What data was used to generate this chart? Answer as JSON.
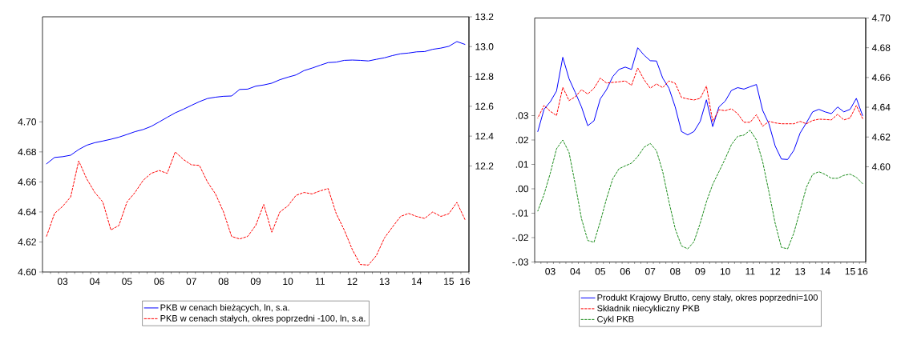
{
  "chart_data": [
    {
      "type": "line",
      "categories": [
        null,
        null,
        "03",
        null,
        null,
        null,
        "04",
        null,
        null,
        null,
        "05",
        null,
        null,
        null,
        "06",
        null,
        null,
        null,
        "07",
        null,
        null,
        null,
        "08",
        null,
        null,
        null,
        "09",
        null,
        null,
        null,
        "10",
        null,
        null,
        null,
        "11",
        null,
        null,
        null,
        "12",
        null,
        null,
        null,
        "13",
        null,
        null,
        null,
        "14",
        null,
        null,
        null,
        "15",
        null,
        "16"
      ],
      "ylim": [
        4.6,
        4.77
      ],
      "yticks": [
        {
          "value": 4.6,
          "label": "4.60"
        },
        {
          "value": 4.62,
          "label": "4.62"
        },
        {
          "value": 4.64,
          "label": "4.64"
        },
        {
          "value": 4.66,
          "label": "4.66"
        },
        {
          "value": 4.68,
          "label": "4.68"
        },
        {
          "value": 4.7,
          "label": "4.70"
        }
      ],
      "y2lim": [
        11.489,
        13.2
      ],
      "y2ticks": [
        12.2,
        12.4,
        12.6,
        12.8,
        {
          "value": 13,
          "label": "13.0"
        },
        13.2
      ],
      "legend": "bottom",
      "series": [
        {
          "name": "PKB w cenach bieżących, ln, s.a.",
          "color": "#0000ff",
          "axis": "y2",
          "line_style": "solid",
          "values": [
            12.214,
            12.257,
            12.262,
            12.272,
            12.31,
            12.339,
            12.356,
            12.367,
            12.379,
            12.393,
            12.411,
            12.43,
            12.444,
            12.465,
            12.495,
            12.526,
            12.556,
            12.58,
            12.606,
            12.631,
            12.652,
            12.661,
            12.667,
            12.669,
            12.713,
            12.715,
            12.735,
            12.743,
            12.755,
            12.778,
            12.795,
            12.81,
            12.839,
            12.856,
            12.875,
            12.893,
            12.896,
            12.908,
            12.91,
            12.908,
            12.904,
            12.915,
            12.925,
            12.94,
            12.952,
            12.957,
            12.965,
            12.967,
            12.982,
            12.99,
            13.002,
            13.034,
            13.015
          ]
        },
        {
          "name": "PKB w cenach stałych, okres poprzedni -100, ln, s.a.",
          "color": "#ff0000",
          "axis": "y",
          "line_style": "dashed",
          "values": [
            4.6237,
            4.639,
            4.6437,
            4.65,
            4.674,
            4.662,
            4.653,
            4.6466,
            4.628,
            4.631,
            4.6466,
            4.653,
            4.661,
            4.6657,
            4.6676,
            4.6657,
            4.68,
            4.675,
            4.6714,
            4.671,
            4.66,
            4.652,
            4.64,
            4.6237,
            4.622,
            4.6237,
            4.631,
            4.645,
            4.6265,
            4.64,
            4.644,
            4.651,
            4.653,
            4.652,
            4.654,
            4.6556,
            4.639,
            4.628,
            4.615,
            4.605,
            4.6046,
            4.611,
            4.6227,
            4.63,
            4.637,
            4.639,
            4.637,
            4.6357,
            4.64,
            4.637,
            4.6388,
            4.6464,
            4.635
          ]
        }
      ]
    },
    {
      "type": "line",
      "categories": [
        null,
        null,
        "03",
        null,
        null,
        null,
        "04",
        null,
        null,
        null,
        "05",
        null,
        null,
        null,
        "06",
        null,
        null,
        null,
        "07",
        null,
        null,
        null,
        "08",
        null,
        null,
        null,
        "09",
        null,
        null,
        null,
        "10",
        null,
        null,
        null,
        "11",
        null,
        null,
        null,
        "12",
        null,
        null,
        null,
        "13",
        null,
        null,
        null,
        "14",
        null,
        null,
        null,
        "15",
        null,
        "16"
      ],
      "ylim": [
        -0.03,
        0.07
      ],
      "yticks": [
        {
          "value": -0.03,
          "label": "-.03"
        },
        {
          "value": -0.02,
          "label": "-.02"
        },
        {
          "value": -0.01,
          "label": "-.01"
        },
        {
          "value": 0,
          "label": ".00"
        },
        {
          "value": 0.01,
          "label": ".01"
        },
        {
          "value": 0.02,
          "label": ".02"
        },
        {
          "value": 0.03,
          "label": ".03"
        }
      ],
      "y2lim": [
        4.536,
        4.7
      ],
      "y2ticks": [
        {
          "value": 4.6,
          "label": "4.60"
        },
        {
          "value": 4.62,
          "label": "4.62"
        },
        {
          "value": 4.64,
          "label": "4.64"
        },
        {
          "value": 4.66,
          "label": "4.66"
        },
        {
          "value": 4.68,
          "label": "4.68"
        },
        {
          "value": 4.7,
          "label": "4.70"
        }
      ],
      "legend": "bottom",
      "series": [
        {
          "name": "Produkt Krajowy Brutto, ceny stały, okres poprzedni=100",
          "color": "#0000ff",
          "axis": "y2",
          "line_style": "solid",
          "values": [
            4.6237,
            4.6386,
            4.6437,
            4.6509,
            4.6736,
            4.6592,
            4.6499,
            4.6402,
            4.6276,
            4.6309,
            4.6456,
            4.6518,
            4.6606,
            4.6654,
            4.667,
            4.6654,
            4.68,
            4.6751,
            4.6713,
            4.6711,
            4.6596,
            4.6528,
            4.6402,
            4.6237,
            4.6214,
            4.6237,
            4.6305,
            4.645,
            4.627,
            4.6402,
            4.6441,
            4.6513,
            4.6532,
            4.6522,
            4.6538,
            4.6553,
            4.6379,
            4.6289,
            4.614,
            4.6052,
            4.6049,
            4.6111,
            4.6227,
            4.6295,
            4.6369,
            4.6386,
            4.6369,
            4.6357,
            4.6402,
            4.6369,
            4.6386,
            4.646,
            4.6344
          ]
        },
        {
          "name": "Składnik niecykliczny PKB",
          "color": "#ff0000",
          "axis": "y2",
          "line_style": "dashed",
          "values": [
            4.6328,
            4.6412,
            4.6373,
            4.6344,
            4.6534,
            4.6445,
            4.647,
            4.6518,
            4.6489,
            4.6528,
            4.6596,
            4.6563,
            4.6567,
            4.6571,
            4.6577,
            4.6548,
            4.6664,
            4.6586,
            4.6528,
            4.6557,
            4.6532,
            4.6577,
            4.6561,
            4.6466,
            4.6456,
            4.6449,
            4.646,
            4.6542,
            4.6305,
            4.6383,
            4.6377,
            4.639,
            4.6357,
            4.6299,
            4.6299,
            4.635,
            4.6272,
            4.6305,
            4.6295,
            4.6289,
            4.6289,
            4.6289,
            4.6305,
            4.6289,
            4.6311,
            4.632,
            4.6318,
            4.6315,
            4.6353,
            4.6315,
            4.6328,
            4.6412,
            4.6324
          ]
        },
        {
          "name": "Cykl PKB",
          "color": "#1a8c1a",
          "axis": "y",
          "line_style": "dashed",
          "values": [
            -0.0091,
            -0.0023,
            0.0064,
            0.0164,
            0.02,
            0.0149,
            0.0018,
            -0.0123,
            -0.0212,
            -0.0219,
            -0.0135,
            -0.0041,
            0.0041,
            0.0082,
            0.0094,
            0.0105,
            0.0132,
            0.017,
            0.0186,
            0.0156,
            0.007,
            -0.0053,
            -0.0164,
            -0.0234,
            -0.0246,
            -0.0217,
            -0.0141,
            -0.0053,
            0.0018,
            0.007,
            0.0123,
            0.0181,
            0.0215,
            0.022,
            0.024,
            0.02,
            0.0111,
            -0.0012,
            -0.0141,
            -0.024,
            -0.0246,
            -0.0181,
            -0.0088,
            0.0006,
            0.0059,
            0.007,
            0.0059,
            0.0043,
            0.0043,
            0.0055,
            0.006,
            0.0047,
            0.0021
          ]
        }
      ]
    }
  ]
}
